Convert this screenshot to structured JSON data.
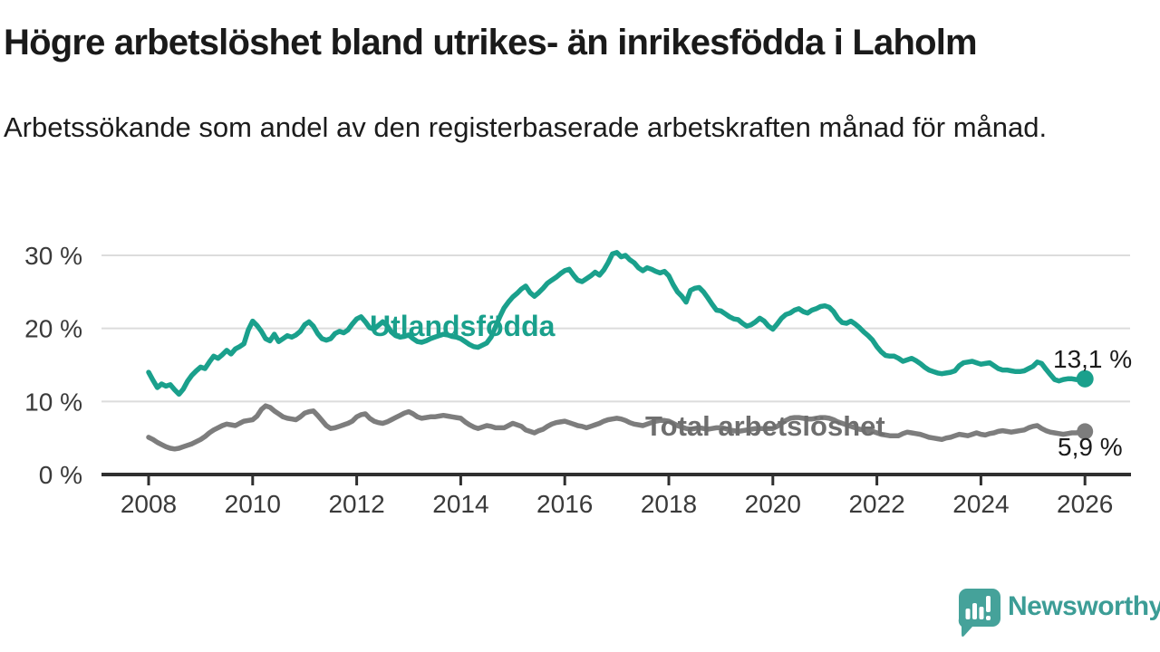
{
  "header": {
    "title": "Högre arbetslöshet bland utrikes- än inrikesfödda i Laholm",
    "subtitle": "Arbetssökande som andel av den registerbaserade arbetskraften månad för månad."
  },
  "chart_data": {
    "type": "line",
    "title": "",
    "xlabel": "",
    "ylabel": "",
    "x_axis": {
      "tick_years": [
        2008,
        2010,
        2012,
        2014,
        2016,
        2018,
        2020,
        2022,
        2024,
        2026
      ],
      "tick_labels": [
        "2008",
        "2010",
        "2012",
        "2014",
        "2016",
        "2018",
        "2020",
        "2022",
        "2024",
        "2026"
      ],
      "range": [
        2007.1,
        2026.9
      ]
    },
    "y_axis": {
      "tick_values": [
        0,
        10,
        20,
        30
      ],
      "tick_labels": [
        "0 %",
        "10 %",
        "20 %",
        "30 %"
      ],
      "range": [
        0,
        33
      ],
      "gridlines": true,
      "gridline_color": "#dcdcdc",
      "axis_color": "#2f2f2f",
      "tick_label_color": "#3a3a3a"
    },
    "x_start_year": 2008,
    "x_step_months": 1,
    "series": [
      {
        "name": "Utlandsfödda",
        "color": "#1aa08c",
        "label_color": "#1aa08c",
        "end_value": 13.1,
        "end_label": "13,1 %",
        "values": [
          14.0,
          12.9,
          11.9,
          12.4,
          12.1,
          12.3,
          11.6,
          11.0,
          11.7,
          12.8,
          13.6,
          14.2,
          14.7,
          14.5,
          15.4,
          16.2,
          15.9,
          16.4,
          17.0,
          16.5,
          17.2,
          17.5,
          17.9,
          19.8,
          21.0,
          20.4,
          19.6,
          18.6,
          18.3,
          19.2,
          18.2,
          18.6,
          19.0,
          18.8,
          19.1,
          19.6,
          20.5,
          20.9,
          20.3,
          19.3,
          18.6,
          18.4,
          18.6,
          19.3,
          19.6,
          19.4,
          19.8,
          20.6,
          21.3,
          21.6,
          20.9,
          20.1,
          19.9,
          20.4,
          20.9,
          20.4,
          19.5,
          19.0,
          18.8,
          18.9,
          19.1,
          18.6,
          18.2,
          18.1,
          18.3,
          18.6,
          18.8,
          19.0,
          19.2,
          19.1,
          18.9,
          18.8,
          18.6,
          18.2,
          17.8,
          17.5,
          17.4,
          17.7,
          18.0,
          18.8,
          20.2,
          21.6,
          22.8,
          23.6,
          24.3,
          24.8,
          25.4,
          25.8,
          24.9,
          24.4,
          24.9,
          25.5,
          26.2,
          26.6,
          27.0,
          27.5,
          27.9,
          28.1,
          27.3,
          26.6,
          26.4,
          26.8,
          27.2,
          27.7,
          27.3,
          28.0,
          29.0,
          30.2,
          30.4,
          29.8,
          30.0,
          29.4,
          29.0,
          28.3,
          27.9,
          28.3,
          28.1,
          27.8,
          27.6,
          27.8,
          27.2,
          26.0,
          25.0,
          24.4,
          23.6,
          25.2,
          25.5,
          25.6,
          25.0,
          24.2,
          23.3,
          22.5,
          22.4,
          22.0,
          21.6,
          21.3,
          21.2,
          20.7,
          20.3,
          20.5,
          20.9,
          21.4,
          21.0,
          20.3,
          19.9,
          20.6,
          21.4,
          21.9,
          22.1,
          22.5,
          22.7,
          22.3,
          22.1,
          22.5,
          22.7,
          23.0,
          23.1,
          22.9,
          22.3,
          21.4,
          20.8,
          20.7,
          21.0,
          20.6,
          20.1,
          19.5,
          19.0,
          18.4,
          17.5,
          16.8,
          16.3,
          16.2,
          16.2,
          15.9,
          15.5,
          15.7,
          15.9,
          15.6,
          15.2,
          14.7,
          14.3,
          14.1,
          13.9,
          13.8,
          13.9,
          14.0,
          14.2,
          14.9,
          15.3,
          15.4,
          15.5,
          15.3,
          15.1,
          15.2,
          15.3,
          14.9,
          14.5,
          14.3,
          14.3,
          14.2,
          14.1,
          14.1,
          14.2,
          14.5,
          14.8,
          15.4,
          15.2,
          14.4,
          13.7,
          13.0,
          12.8,
          13.0,
          13.1,
          13.1,
          13.0,
          13.0,
          13.1
        ]
      },
      {
        "name": "Total arbetslöshet",
        "color": "#7d7d7d",
        "label_color": "#6e6e6e",
        "end_value": 5.9,
        "end_label": "5,9 %",
        "values": [
          5.1,
          4.8,
          4.4,
          4.1,
          3.8,
          3.6,
          3.5,
          3.6,
          3.8,
          4.0,
          4.2,
          4.5,
          4.8,
          5.2,
          5.7,
          6.1,
          6.4,
          6.7,
          6.9,
          6.8,
          6.7,
          7.0,
          7.3,
          7.4,
          7.5,
          8.0,
          8.9,
          9.4,
          9.2,
          8.7,
          8.3,
          7.9,
          7.7,
          7.6,
          7.5,
          7.9,
          8.4,
          8.6,
          8.7,
          8.1,
          7.4,
          6.7,
          6.3,
          6.4,
          6.6,
          6.8,
          7.0,
          7.3,
          7.9,
          8.2,
          8.3,
          7.7,
          7.3,
          7.1,
          7.0,
          7.2,
          7.5,
          7.8,
          8.1,
          8.4,
          8.6,
          8.3,
          7.9,
          7.7,
          7.8,
          7.9,
          7.9,
          8.0,
          8.1,
          8.0,
          7.9,
          7.8,
          7.7,
          7.2,
          6.8,
          6.5,
          6.3,
          6.5,
          6.7,
          6.6,
          6.4,
          6.4,
          6.4,
          6.7,
          7.0,
          6.8,
          6.6,
          6.1,
          5.9,
          5.7,
          6.0,
          6.2,
          6.6,
          6.9,
          7.1,
          7.2,
          7.3,
          7.1,
          6.9,
          6.7,
          6.6,
          6.4,
          6.6,
          6.8,
          7.0,
          7.3,
          7.5,
          7.6,
          7.7,
          7.6,
          7.4,
          7.1,
          6.9,
          6.8,
          6.7,
          6.9,
          7.1,
          7.3,
          7.4,
          7.4,
          7.3,
          7.0,
          6.7,
          6.5,
          6.3,
          6.2,
          6.3,
          6.4,
          6.3,
          6.2,
          6.3,
          6.4,
          6.4,
          6.3,
          6.1,
          6.0,
          5.9,
          6.0,
          6.1,
          6.2,
          6.3,
          6.3,
          6.3,
          6.3,
          6.3,
          6.6,
          7.0,
          7.4,
          7.7,
          7.8,
          7.8,
          7.7,
          7.6,
          7.6,
          7.7,
          7.8,
          7.8,
          7.7,
          7.5,
          7.2,
          7.0,
          6.8,
          6.6,
          6.4,
          6.2,
          6.1,
          6.0,
          5.9,
          5.7,
          5.5,
          5.4,
          5.3,
          5.3,
          5.3,
          5.6,
          5.8,
          5.7,
          5.6,
          5.5,
          5.3,
          5.1,
          5.0,
          4.9,
          4.8,
          5.0,
          5.1,
          5.3,
          5.5,
          5.4,
          5.3,
          5.5,
          5.7,
          5.5,
          5.4,
          5.6,
          5.7,
          5.9,
          6.0,
          5.9,
          5.8,
          5.9,
          6.0,
          6.1,
          6.4,
          6.6,
          6.7,
          6.3,
          6.0,
          5.8,
          5.7,
          5.6,
          5.5,
          5.6,
          5.7,
          5.7,
          5.8,
          5.9
        ]
      }
    ],
    "legend_position": "inline-labels-on-lines"
  },
  "branding": {
    "logo_text": "Newsworthy",
    "logo_icon": "newsworthy-speech-bubble-bar-chart-icon",
    "text_color": "#3c9d96",
    "icon_color": "#45a29a"
  }
}
